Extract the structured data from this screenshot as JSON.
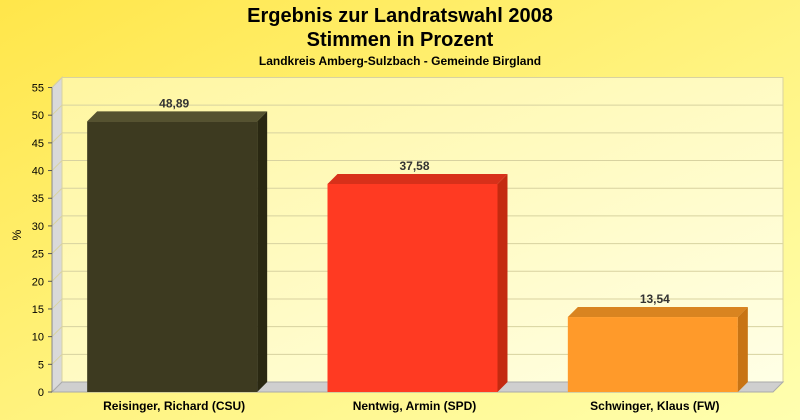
{
  "chart_data": {
    "type": "bar",
    "title": "Ergebnis zur Landratswahl 2008",
    "subtitle_main": "Stimmen in Prozent",
    "subtitle": "Landkreis Amberg-Sulzbach - Gemeinde Birgland",
    "ylabel": "%",
    "xlabel": "",
    "ylim": [
      0,
      55
    ],
    "yticks": [
      "0",
      "5",
      "10",
      "15",
      "20",
      "25",
      "30",
      "35",
      "40",
      "45",
      "50",
      "55"
    ],
    "grid": true,
    "categories": [
      "Reisinger, Richard (CSU)",
      "Nentwig, Armin (SPD)",
      "Schwinger, Klaus (FW)"
    ],
    "values": [
      48.89,
      37.58,
      13.54
    ],
    "value_labels": [
      "48,89",
      "37,58",
      "13,54"
    ],
    "colors": [
      "#3d3a20",
      "#ff3a22",
      "#ff9a2a"
    ],
    "side_colors": [
      "#2a2812",
      "#c42a10",
      "#c87414"
    ],
    "top_colors": [
      "#555230",
      "#d8301a",
      "#d98420"
    ]
  },
  "colors": {
    "background": "#fff27a",
    "plot_bg": "#ffffc8",
    "grid": "#d8d2a0"
  }
}
